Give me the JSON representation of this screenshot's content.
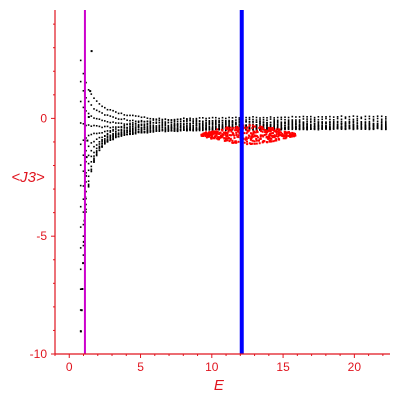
{
  "chart_data": {
    "type": "scatter",
    "title": "",
    "xlabel": "E",
    "ylabel": "<J3>",
    "xlim": [
      -1,
      22.5
    ],
    "ylim": [
      -10,
      4.6
    ],
    "x_ticks": [
      0,
      5,
      10,
      15,
      20
    ],
    "x_tick_labels": [
      "0",
      "5",
      "10",
      "15",
      "20"
    ],
    "y_ticks": [
      0,
      -5,
      -10
    ],
    "y_tick_labels": [
      "0",
      "-5",
      "-10"
    ],
    "grid": false,
    "axis_color": "#e0141e",
    "vertical_lines": [
      {
        "x": 1.1,
        "color": "#cc00cc"
      },
      {
        "x": 12.1,
        "color": "#0000ff"
      }
    ],
    "series": [
      {
        "color": "#000000",
        "description_visible": false,
        "values": [
          {
            "E": 0.75,
            "J3": -9.0
          },
          {
            "E": 0.8,
            "J3": -8.1
          },
          {
            "E": 0.85,
            "J3": -7.2
          },
          {
            "E": 0.9,
            "J3": -6.1
          },
          {
            "E": 0.95,
            "J3": -5.2
          },
          {
            "E": 1.0,
            "J3": -4.3
          },
          {
            "E": 1.05,
            "J3": -3.3
          },
          {
            "E": 1.1,
            "J3": -2.4
          },
          {
            "E": 1.15,
            "J3": -1.6
          },
          {
            "E": 1.2,
            "J3": -0.9
          },
          {
            "E": 1.3,
            "J3": 0.1
          },
          {
            "E": 1.4,
            "J3": 1.2
          },
          {
            "E": 1.5,
            "J3": 2.9
          }
        ]
      },
      {
        "color": "#ff0000",
        "values": [
          {
            "E": 9.5,
            "J3": -0.5
          },
          {
            "E": 10.5,
            "J3": -0.7
          },
          {
            "E": 11.5,
            "J3": -0.8
          },
          {
            "E": 12.5,
            "J3": -0.8
          },
          {
            "E": 13.5,
            "J3": -0.7
          },
          {
            "E": 14.5,
            "J3": -0.6
          },
          {
            "E": 15.5,
            "J3": -0.5
          }
        ]
      }
    ]
  }
}
